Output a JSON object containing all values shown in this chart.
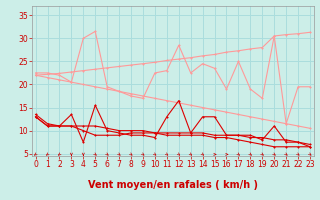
{
  "bg_color": "#cceee8",
  "grid_color": "#aadddd",
  "xlabel": "Vent moyen/en rafales ( km/h )",
  "xlabel_color": "#cc0000",
  "xlabel_fontsize": 7,
  "yticks": [
    5,
    10,
    15,
    20,
    25,
    30,
    35
  ],
  "xticks": [
    0,
    1,
    2,
    3,
    4,
    5,
    6,
    7,
    8,
    9,
    10,
    11,
    12,
    13,
    14,
    15,
    16,
    17,
    18,
    19,
    20,
    21,
    22,
    23
  ],
  "ylim": [
    4.5,
    37
  ],
  "xlim": [
    -0.3,
    23.3
  ],
  "tick_color": "#cc0000",
  "tick_fontsize": 5.5,
  "line1_color": "#ff9999",
  "line1_y": [
    22.5,
    22.5,
    22.0,
    20.5,
    30.0,
    31.5,
    19.5,
    18.5,
    17.5,
    17.0,
    22.5,
    23.0,
    28.5,
    22.5,
    24.5,
    23.5,
    19.0,
    25.0,
    19.0,
    17.0,
    30.5,
    11.5,
    19.5,
    19.5
  ],
  "line2_color": "#ff9999",
  "line2_y": [
    22.0,
    22.2,
    22.4,
    22.7,
    23.0,
    23.3,
    23.6,
    23.9,
    24.2,
    24.5,
    24.8,
    25.2,
    25.5,
    25.8,
    26.2,
    26.5,
    27.0,
    27.3,
    27.7,
    28.0,
    30.5,
    30.8,
    31.0,
    31.3
  ],
  "line3_color": "#ff9999",
  "line3_y": [
    22.0,
    21.5,
    21.0,
    20.5,
    20.0,
    19.5,
    19.0,
    18.5,
    18.0,
    17.5,
    17.0,
    16.5,
    16.0,
    15.5,
    15.0,
    14.5,
    14.0,
    13.5,
    13.0,
    12.5,
    12.0,
    11.5,
    11.0,
    10.5
  ],
  "line4_color": "#dd0000",
  "line4_y": [
    13.5,
    11.5,
    11.0,
    13.5,
    7.5,
    15.5,
    10.0,
    9.5,
    9.0,
    9.0,
    8.5,
    13.0,
    16.5,
    9.5,
    13.0,
    13.0,
    9.0,
    9.0,
    9.0,
    8.0,
    11.0,
    7.5,
    7.5,
    6.5
  ],
  "line5_color": "#dd0000",
  "line5_y": [
    13.0,
    11.0,
    11.0,
    11.0,
    11.0,
    11.0,
    10.5,
    10.0,
    10.0,
    10.0,
    9.5,
    9.5,
    9.5,
    9.5,
    9.5,
    9.0,
    9.0,
    9.0,
    8.5,
    8.5,
    8.0,
    8.0,
    7.5,
    7.0
  ],
  "line6_color": "#dd0000",
  "line6_y": [
    13.0,
    11.0,
    11.0,
    11.0,
    10.0,
    9.0,
    9.0,
    9.0,
    9.5,
    9.5,
    9.5,
    9.0,
    9.0,
    9.0,
    9.0,
    8.5,
    8.5,
    8.0,
    7.5,
    7.0,
    6.5,
    6.5,
    6.5,
    6.5
  ],
  "arrow_angles": [
    225,
    225,
    225,
    270,
    270,
    315,
    315,
    315,
    315,
    315,
    315,
    315,
    315,
    315,
    315,
    0,
    0,
    315,
    315,
    315,
    315,
    315,
    315,
    315
  ]
}
